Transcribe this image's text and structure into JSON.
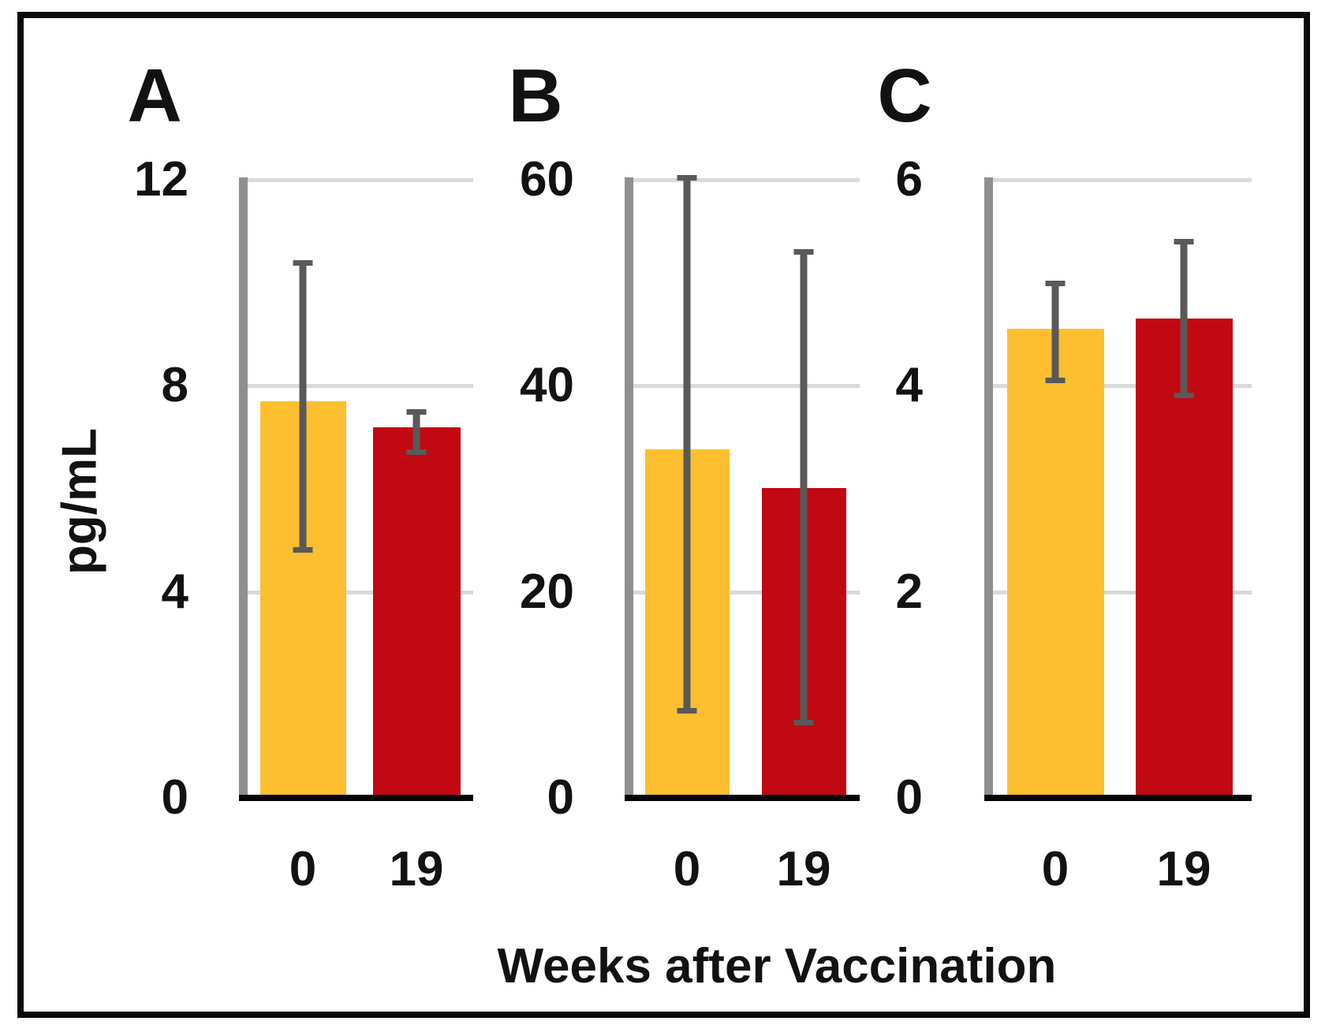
{
  "chart_data": {
    "type": "bar",
    "title": "",
    "xlabel": "Weeks after Vaccination",
    "ylabel": "pg/mL",
    "categories": [
      "0",
      "19"
    ],
    "grid": true,
    "legend": "none",
    "colors": {
      "week0_bar": "#FDBE2F",
      "week19_bar": "#C20812",
      "error_bar": "#595959",
      "gridline": "#D9D9D9",
      "y_axis_line": "#8F8F8F",
      "x_axis_line": "#070707",
      "text": "#121212"
    },
    "panels": [
      {
        "label": "A",
        "ylim": [
          0,
          12
        ],
        "yticks": [
          12,
          8,
          4,
          0
        ],
        "bars": [
          {
            "week": "0",
            "value": 7.7,
            "err_low": 4.8,
            "err_high": 10.4
          },
          {
            "week": "19",
            "value": 7.2,
            "err_low": 6.7,
            "err_high": 7.5
          }
        ]
      },
      {
        "label": "B",
        "ylim": [
          0,
          60
        ],
        "yticks": [
          60,
          40,
          20,
          0
        ],
        "bars": [
          {
            "week": "0",
            "value": 33.8,
            "err_low": 8.4,
            "err_high": 60.2
          },
          {
            "week": "19",
            "value": 30.1,
            "err_low": 7.3,
            "err_high": 53.0
          }
        ]
      },
      {
        "label": "C",
        "ylim": [
          0,
          6
        ],
        "yticks": [
          6,
          4,
          2,
          0
        ],
        "bars": [
          {
            "week": "0",
            "value": 4.55,
            "err_low": 4.05,
            "err_high": 5.0
          },
          {
            "week": "19",
            "value": 4.65,
            "err_low": 3.9,
            "err_high": 5.4
          }
        ]
      }
    ]
  }
}
